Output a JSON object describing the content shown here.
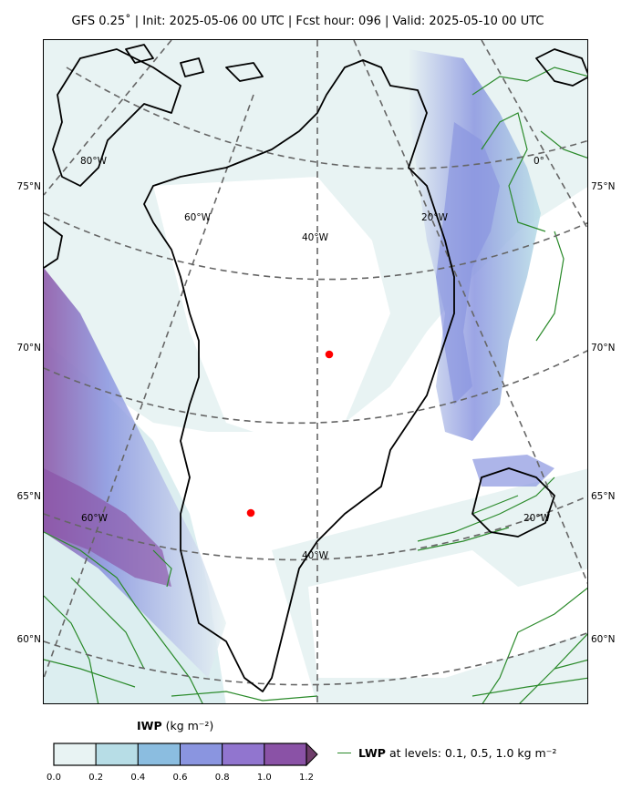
{
  "title": "GFS 0.25$^\\circ$  |  Init: 2025-05-06 00 UTC  |  Fcst hour: 096  |  Valid: 2025-05-10 00 UTC",
  "title_display": "GFS 0.25˚  |  Init: 2025-05-06 00 UTC  |  Fcst hour: 096  |  Valid: 2025-05-10 00 UTC",
  "map": {
    "lat_labels_left": [
      "75°N",
      "70°N",
      "65°N",
      "60°N"
    ],
    "lat_labels_right": [
      "75°N",
      "70°N",
      "65°N",
      "60°N"
    ],
    "lon_labels": [
      "80°W",
      "60°W",
      "40°W",
      "20°W",
      "0°",
      "60°W",
      "40°W",
      "20°W"
    ],
    "markers_color": "#ff0000",
    "coast_color": "#000000",
    "lwp_contour_color": "#2a8a2a",
    "grid_color": "#666666"
  },
  "colorbar": {
    "variable": "IWP",
    "units": "(kg m⁻²)",
    "ticks": [
      "0.0",
      "0.2",
      "0.4",
      "0.6",
      "0.8",
      "1.0",
      "1.2"
    ],
    "colors": [
      "#e8f3f3",
      "#b7dde6",
      "#8bbde0",
      "#8a95e0",
      "#9175cf",
      "#8a52a6",
      "#6e3d6a"
    ]
  },
  "legend": {
    "variable": "LWP",
    "text": "at levels: 0.1, 0.5, 1.0  kg m⁻²"
  }
}
